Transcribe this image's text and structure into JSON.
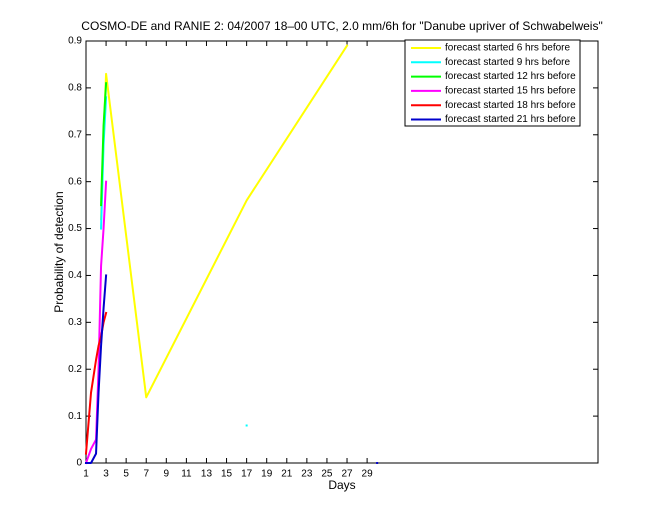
{
  "chart_data": {
    "type": "line",
    "title": "COSMO-DE and RANIE 2: 04/2007 18–00 UTC, 2.0 mm/6h for \"Danube upriver of Schwabelweis\"",
    "x_label": "Days",
    "y_label": "Probability of detection",
    "x": [
      1,
      1.5,
      2,
      2.25,
      2.5,
      2.75,
      3,
      7,
      17,
      27,
      30
    ],
    "series": [
      {
        "name": "forecast started 6 hrs before",
        "color": "#ffff00",
        "values": [
          null,
          null,
          null,
          null,
          0.52,
          0.7,
          0.83,
          0.14,
          0.56,
          0.89,
          null
        ]
      },
      {
        "name": "forecast started 9 hrs before",
        "color": "#00ffff",
        "values": [
          null,
          null,
          null,
          null,
          0.5,
          0.68,
          0.78,
          null,
          0.08,
          null,
          null
        ]
      },
      {
        "name": "forecast started 12 hrs before",
        "color": "#00ff00",
        "values": [
          null,
          null,
          null,
          null,
          0.55,
          0.72,
          0.81,
          null,
          null,
          null,
          null
        ]
      },
      {
        "name": "forecast started 15 hrs before",
        "color": "#ff00ff",
        "values": [
          0,
          0.03,
          0.05,
          0.2,
          0.42,
          0.5,
          0.6,
          null,
          null,
          null,
          null
        ]
      },
      {
        "name": "forecast started 18 hrs before",
        "color": "#ff0000",
        "values": [
          0.02,
          0.15,
          0.22,
          0.25,
          0.27,
          0.3,
          0.32,
          null,
          null,
          null,
          null
        ]
      },
      {
        "name": "forecast started 21 hrs before",
        "color": "#0000cc",
        "values": [
          0,
          0,
          0.02,
          0.15,
          0.25,
          0.33,
          0.4,
          null,
          null,
          null,
          0
        ]
      }
    ],
    "xlim": [
      1,
      52
    ],
    "ylim": [
      0,
      0.9
    ],
    "xticks": [
      1,
      3,
      5,
      7,
      9,
      11,
      13,
      15,
      17,
      19,
      21,
      23,
      25,
      27,
      29
    ],
    "yticks": [
      0,
      0.1,
      0.2,
      0.3,
      0.4,
      0.5,
      0.6,
      0.7,
      0.8,
      0.9
    ],
    "grid": false,
    "legend": "upper right"
  }
}
